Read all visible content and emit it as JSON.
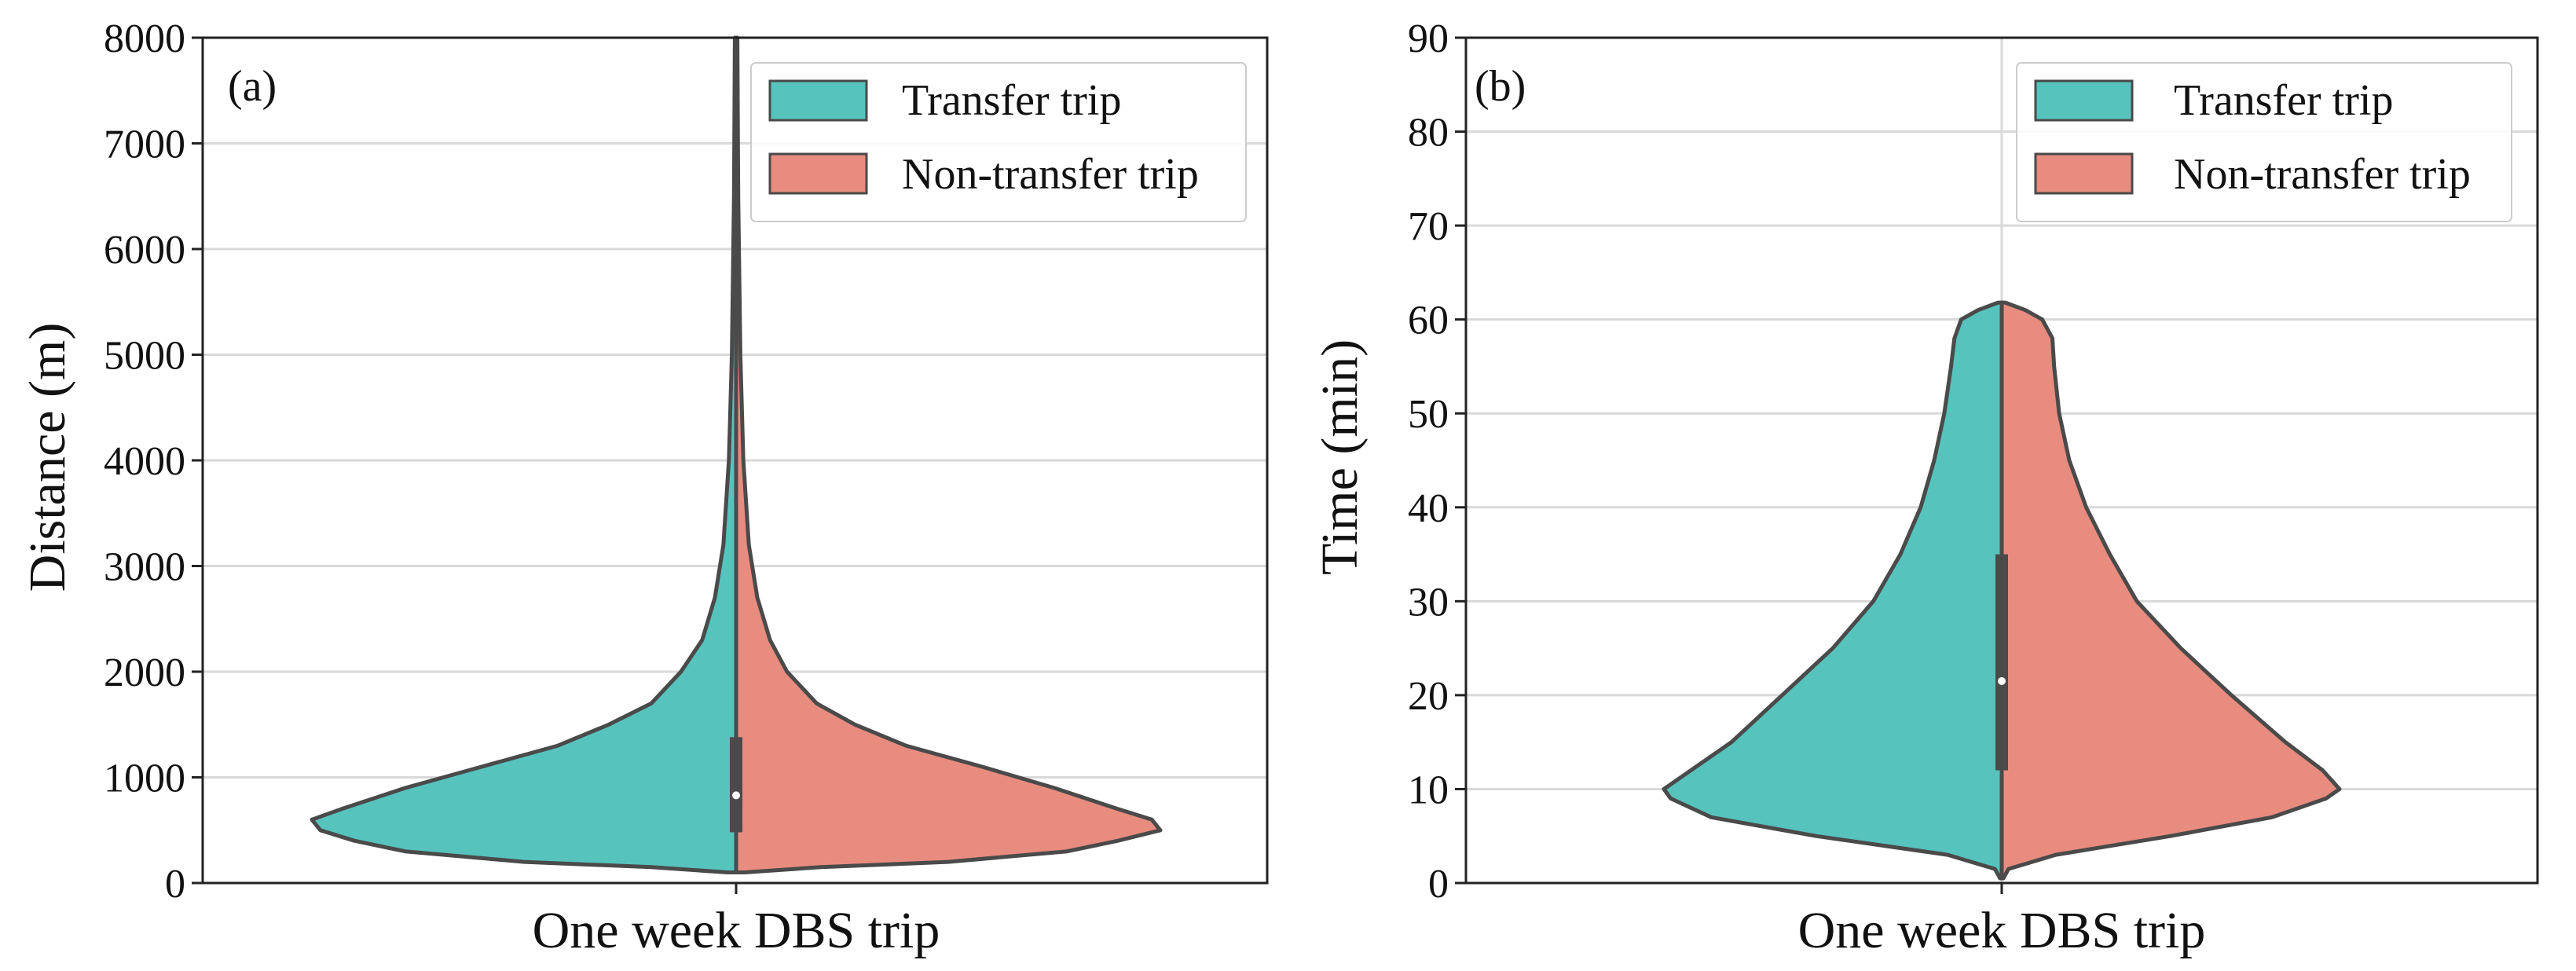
{
  "chart_data": [
    {
      "type": "violin",
      "panel_label": "(a)",
      "xlabel": "One week DBS trip",
      "ylabel": "Distance (m)",
      "ylim": [
        0,
        8000
      ],
      "yticks": [
        "0",
        "1000",
        "2000",
        "3000",
        "4000",
        "5000",
        "6000",
        "7000",
        "8000"
      ],
      "grid": "horizontal",
      "legend_position": "top-right",
      "series": [
        {
          "name": "Transfer trip",
          "side": "left",
          "color": "#57c3bd",
          "density": [
            [
              100,
              0.02
            ],
            [
              150,
              0.2
            ],
            [
              200,
              0.5
            ],
            [
              300,
              0.78
            ],
            [
              400,
              0.9
            ],
            [
              500,
              0.98
            ],
            [
              600,
              1.0
            ],
            [
              700,
              0.93
            ],
            [
              900,
              0.78
            ],
            [
              1100,
              0.6
            ],
            [
              1300,
              0.42
            ],
            [
              1500,
              0.3
            ],
            [
              1700,
              0.2
            ],
            [
              2000,
              0.13
            ],
            [
              2300,
              0.08
            ],
            [
              2700,
              0.05
            ],
            [
              3200,
              0.03
            ],
            [
              4000,
              0.017
            ],
            [
              5000,
              0.01
            ],
            [
              6500,
              0.005
            ],
            [
              8000,
              0.003
            ]
          ]
        },
        {
          "name": "Non-transfer trip",
          "side": "right",
          "color": "#e88c7f",
          "density": [
            [
              100,
              0.02
            ],
            [
              150,
              0.2
            ],
            [
              200,
              0.5
            ],
            [
              300,
              0.78
            ],
            [
              400,
              0.9
            ],
            [
              500,
              1.0
            ],
            [
              600,
              0.98
            ],
            [
              700,
              0.9
            ],
            [
              900,
              0.75
            ],
            [
              1100,
              0.58
            ],
            [
              1300,
              0.4
            ],
            [
              1500,
              0.28
            ],
            [
              1700,
              0.19
            ],
            [
              2000,
              0.12
            ],
            [
              2300,
              0.08
            ],
            [
              2700,
              0.05
            ],
            [
              3200,
              0.03
            ],
            [
              4000,
              0.017
            ],
            [
              5000,
              0.01
            ],
            [
              6500,
              0.005
            ],
            [
              8000,
              0.003
            ]
          ]
        }
      ],
      "box": {
        "q1": 480,
        "q3": 1380,
        "median": 830
      }
    },
    {
      "type": "violin",
      "panel_label": "(b)",
      "xlabel": "One week DBS trip",
      "ylabel": "Time (min)",
      "ylim": [
        0,
        90
      ],
      "yticks": [
        "0",
        "10",
        "20",
        "30",
        "40",
        "50",
        "60",
        "70",
        "80",
        "90"
      ],
      "grid": "both",
      "legend_position": "top-right",
      "series": [
        {
          "name": "Transfer trip",
          "side": "left",
          "color": "#57c3bd",
          "density": [
            [
              0.5,
              0.005
            ],
            [
              1.5,
              0.02
            ],
            [
              3,
              0.16
            ],
            [
              5,
              0.55
            ],
            [
              7,
              0.86
            ],
            [
              9,
              0.98
            ],
            [
              10,
              1.0
            ],
            [
              12,
              0.92
            ],
            [
              15,
              0.8
            ],
            [
              20,
              0.65
            ],
            [
              25,
              0.5
            ],
            [
              30,
              0.38
            ],
            [
              35,
              0.3
            ],
            [
              40,
              0.24
            ],
            [
              45,
              0.2
            ],
            [
              50,
              0.17
            ],
            [
              55,
              0.15
            ],
            [
              58,
              0.14
            ],
            [
              60,
              0.12
            ],
            [
              61,
              0.07
            ],
            [
              61.8,
              0.01
            ]
          ]
        },
        {
          "name": "Non-transfer trip",
          "side": "right",
          "color": "#e88c7f",
          "density": [
            [
              0.5,
              0.005
            ],
            [
              1.5,
              0.02
            ],
            [
              3,
              0.16
            ],
            [
              5,
              0.5
            ],
            [
              7,
              0.8
            ],
            [
              9,
              0.96
            ],
            [
              10,
              1.0
            ],
            [
              12,
              0.95
            ],
            [
              15,
              0.84
            ],
            [
              20,
              0.68
            ],
            [
              25,
              0.53
            ],
            [
              30,
              0.4
            ],
            [
              35,
              0.32
            ],
            [
              40,
              0.25
            ],
            [
              45,
              0.2
            ],
            [
              50,
              0.17
            ],
            [
              55,
              0.155
            ],
            [
              58,
              0.15
            ],
            [
              60,
              0.12
            ],
            [
              61,
              0.07
            ],
            [
              61.8,
              0.01
            ]
          ]
        }
      ],
      "box": {
        "q1": 12,
        "q3": 35,
        "median": 21.5
      }
    }
  ]
}
